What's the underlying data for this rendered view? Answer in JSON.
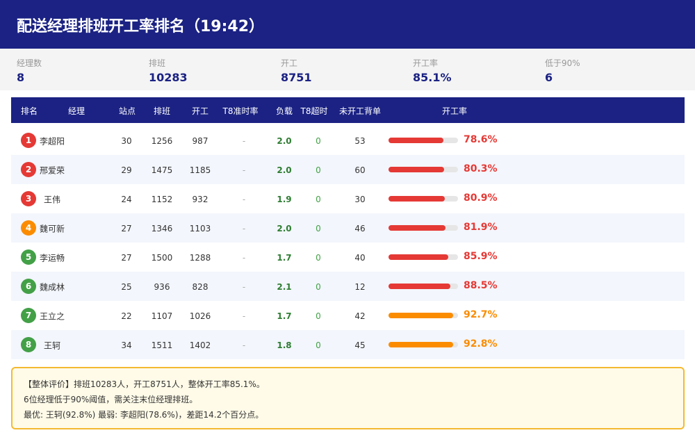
{
  "header": {
    "title": "配送经理排班开工率排名（19:42）"
  },
  "stats": [
    {
      "label": "经理数",
      "value": "8"
    },
    {
      "label": "排班",
      "value": "10283"
    },
    {
      "label": "开工",
      "value": "8751"
    },
    {
      "label": "开工率",
      "value": "85.1%"
    },
    {
      "label": "低于90%",
      "value": "6"
    }
  ],
  "table": {
    "columns": [
      "排名",
      "经理",
      "站点",
      "排班",
      "开工",
      "T8准时率",
      "负载",
      "T8超时",
      "未开工背单",
      "开工率"
    ],
    "bar_range": [
      0,
      100
    ],
    "rows": [
      {
        "rank": "1",
        "badge_color": "#e53935",
        "name": "李超阳",
        "cells": [
          "30",
          "1256",
          "987",
          "-",
          "2.0",
          "0",
          "53"
        ],
        "rate": {
          "value": 78.6,
          "label": "78.6%"
        },
        "color": "#e53935"
      },
      {
        "rank": "2",
        "badge_color": "#e53935",
        "name": "邢爱荣",
        "cells": [
          "29",
          "1475",
          "1185",
          "-",
          "2.0",
          "0",
          "60"
        ],
        "rate": {
          "value": 80.3,
          "label": "80.3%"
        },
        "color": "#e53935"
      },
      {
        "rank": "3",
        "badge_color": "#e53935",
        "name": "王伟",
        "cells": [
          "24",
          "1152",
          "932",
          "-",
          "1.9",
          "0",
          "30"
        ],
        "rate": {
          "value": 80.9,
          "label": "80.9%"
        },
        "color": "#e53935"
      },
      {
        "rank": "4",
        "badge_color": "#fb8c00",
        "name": "魏可新",
        "cells": [
          "27",
          "1346",
          "1103",
          "-",
          "2.0",
          "0",
          "46"
        ],
        "rate": {
          "value": 81.9,
          "label": "81.9%"
        },
        "color": "#e53935"
      },
      {
        "rank": "5",
        "badge_color": "#43a047",
        "name": "李运畅",
        "cells": [
          "27",
          "1500",
          "1288",
          "-",
          "1.7",
          "0",
          "40"
        ],
        "rate": {
          "value": 85.9,
          "label": "85.9%"
        },
        "color": "#e53935"
      },
      {
        "rank": "6",
        "badge_color": "#43a047",
        "name": "魏成林",
        "cells": [
          "25",
          "936",
          "828",
          "-",
          "2.1",
          "0",
          "12"
        ],
        "rate": {
          "value": 88.5,
          "label": "88.5%"
        },
        "color": "#e53935"
      },
      {
        "rank": "7",
        "badge_color": "#43a047",
        "name": "王立之",
        "cells": [
          "22",
          "1107",
          "1026",
          "-",
          "1.7",
          "0",
          "42"
        ],
        "rate": {
          "value": 92.7,
          "label": "92.7%"
        },
        "color": "#fb8c00"
      },
      {
        "rank": "8",
        "badge_color": "#43a047",
        "name": "王轲",
        "cells": [
          "34",
          "1511",
          "1402",
          "-",
          "1.8",
          "0",
          "45"
        ],
        "rate": {
          "value": 92.8,
          "label": "92.8%"
        },
        "color": "#fb8c00"
      }
    ]
  },
  "note": {
    "lines": [
      "【整体评价】排班10283人，开工8751人，整体开工率85.1%。",
      "6位经理低于90%阈值，需关注末位经理排班。",
      "最优: 王轲(92.8%) 最弱: 李超阳(78.6%)，差距14.2个百分点。"
    ]
  }
}
